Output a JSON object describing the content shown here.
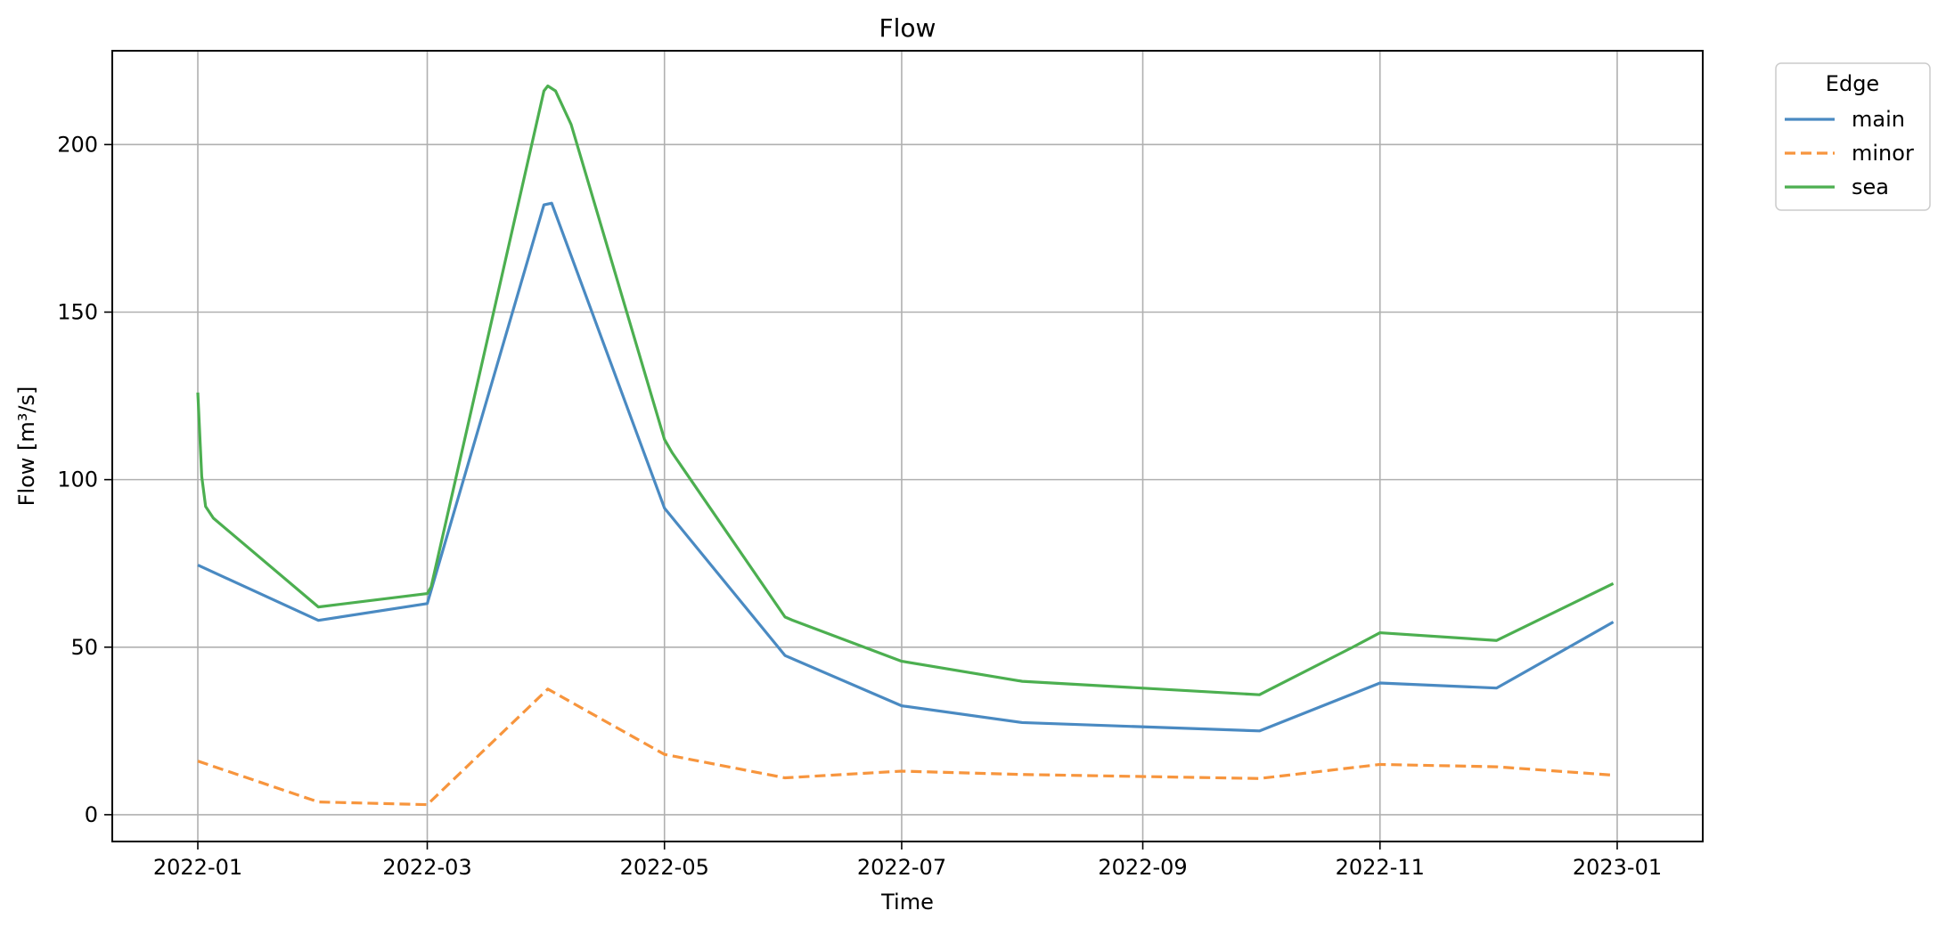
{
  "chart_data": {
    "type": "line",
    "title": "Flow",
    "xlabel": "Time",
    "ylabel": "Flow [m³/s]",
    "x_ticks": [
      "2022-01",
      "2022-03",
      "2022-05",
      "2022-07",
      "2022-09",
      "2022-11",
      "2023-01"
    ],
    "y_ticks": [
      "0",
      "50",
      "100",
      "150",
      "200"
    ],
    "ylim": [
      -8,
      228
    ],
    "xlim": [
      "2021-12-10",
      "2023-01-23"
    ],
    "grid": true,
    "legend": {
      "title": "Edge",
      "placement": "outside-top-right"
    },
    "series": [
      {
        "name": "main",
        "color": "#4a8ac2",
        "dash": "solid",
        "points": [
          [
            "2022-01-01",
            74.5
          ],
          [
            "2022-02-01",
            58.0
          ],
          [
            "2022-03-01",
            63.0
          ],
          [
            "2022-03-31",
            182.0
          ],
          [
            "2022-04-02",
            182.5
          ],
          [
            "2022-05-01",
            91.5
          ],
          [
            "2022-06-01",
            47.5
          ],
          [
            "2022-07-01",
            32.5
          ],
          [
            "2022-08-01",
            27.5
          ],
          [
            "2022-10-01",
            25.0
          ],
          [
            "2022-11-01",
            39.3
          ],
          [
            "2022-12-01",
            37.8
          ],
          [
            "2022-12-31",
            57.5
          ]
        ]
      },
      {
        "name": "minor",
        "color": "#f7953d",
        "dash": "dashed",
        "points": [
          [
            "2022-01-01",
            16.0
          ],
          [
            "2022-02-01",
            3.8
          ],
          [
            "2022-03-01",
            3.0
          ],
          [
            "2022-04-01",
            37.5
          ],
          [
            "2022-05-01",
            18.0
          ],
          [
            "2022-06-01",
            11.0
          ],
          [
            "2022-07-01",
            13.0
          ],
          [
            "2022-08-01",
            12.0
          ],
          [
            "2022-10-01",
            10.8
          ],
          [
            "2022-11-01",
            15.0
          ],
          [
            "2022-12-01",
            14.3
          ],
          [
            "2022-12-31",
            11.8
          ]
        ]
      },
      {
        "name": "sea",
        "color": "#4caf50",
        "dash": "solid",
        "points": [
          [
            "2022-01-01",
            126.0
          ],
          [
            "2022-01-02",
            101.0
          ],
          [
            "2022-01-03",
            92.0
          ],
          [
            "2022-01-05",
            88.5
          ],
          [
            "2022-02-01",
            62.0
          ],
          [
            "2022-03-01",
            66.0
          ],
          [
            "2022-03-02",
            68.0
          ],
          [
            "2022-03-31",
            216.0
          ],
          [
            "2022-04-01",
            217.5
          ],
          [
            "2022-04-03",
            216.0
          ],
          [
            "2022-04-07",
            206.0
          ],
          [
            "2022-05-01",
            112.0
          ],
          [
            "2022-05-03",
            108.0
          ],
          [
            "2022-06-01",
            59.0
          ],
          [
            "2022-06-03",
            58.0
          ],
          [
            "2022-07-01",
            45.8
          ],
          [
            "2022-08-01",
            39.8
          ],
          [
            "2022-10-01",
            35.8
          ],
          [
            "2022-10-03",
            37.0
          ],
          [
            "2022-10-25",
            50.0
          ],
          [
            "2022-11-01",
            54.3
          ],
          [
            "2022-12-01",
            52.0
          ],
          [
            "2022-12-31",
            69.0
          ]
        ]
      }
    ]
  }
}
